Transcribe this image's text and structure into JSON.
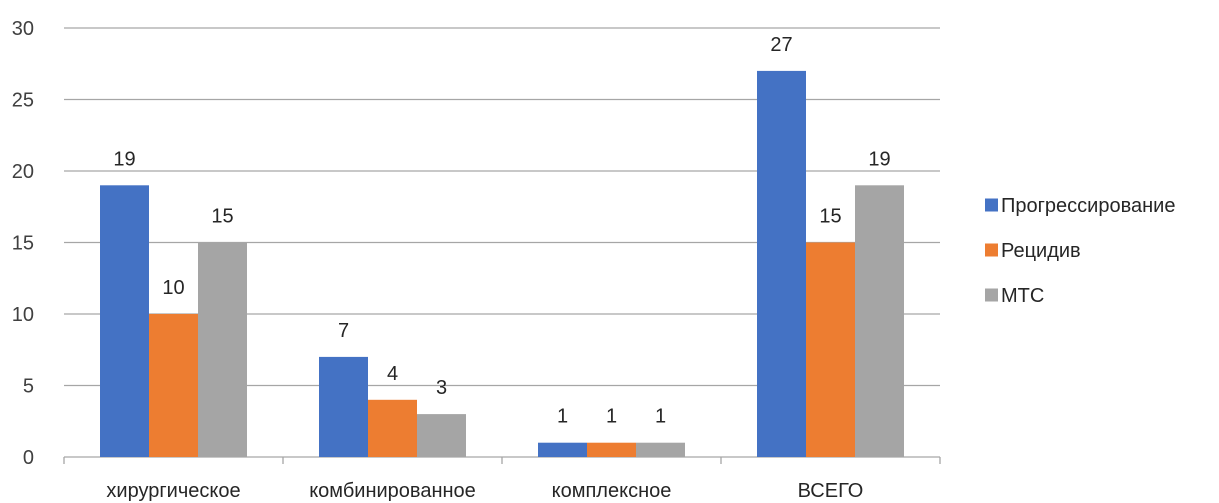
{
  "chart_data": {
    "type": "bar",
    "categories": [
      "хирургическое",
      "комбинированное",
      "комплексное",
      "ВСЕГО"
    ],
    "series": [
      {
        "name": "Прогрессирование",
        "values": [
          19,
          7,
          1,
          27
        ],
        "color": "#4472c4"
      },
      {
        "name": "Рецидив",
        "values": [
          10,
          4,
          1,
          15
        ],
        "color": "#ed7d31"
      },
      {
        "name": "МТС",
        "values": [
          15,
          3,
          1,
          19
        ],
        "color": "#a5a5a5"
      }
    ],
    "yticks": [
      "0",
      "5",
      "10",
      "15",
      "20",
      "25",
      "30"
    ],
    "ylim": [
      0,
      30
    ],
    "grid": true,
    "legend_position": "right",
    "data_labels": true
  }
}
